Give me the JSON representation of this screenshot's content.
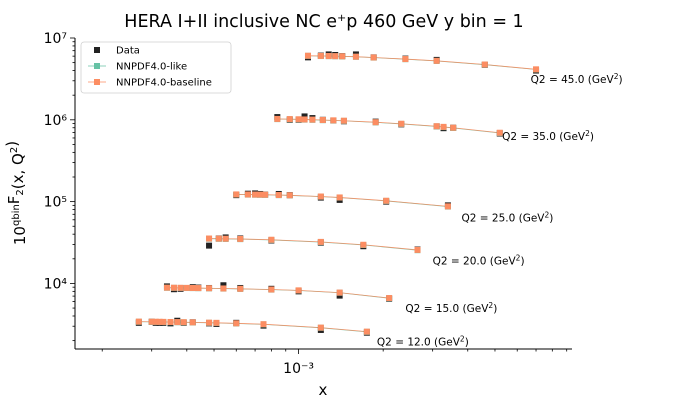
{
  "chart_data": {
    "type": "scatter",
    "title": "HERA I+II inclusive NC e⁺p 460 GeV y bin = 1",
    "xlabel": "x",
    "ylabel": "10^{qbin}F_2(x, Q^2)",
    "xscale": "log",
    "yscale": "log",
    "xlim": [
      0.00016,
      0.0094
    ],
    "ylim": [
      1580,
      10000000
    ],
    "x_ticks": [
      {
        "value": 0.001,
        "label": "10⁻³"
      }
    ],
    "y_ticks": [
      {
        "value": 10000,
        "label": "10⁴"
      },
      {
        "value": 100000,
        "label": "10⁵"
      },
      {
        "value": 1000000,
        "label": "10⁶"
      },
      {
        "value": 10000000,
        "label": "10⁷"
      }
    ],
    "grid": false,
    "legend": {
      "position": "top-left",
      "entries": [
        "Data",
        "NNPDF4.0-like",
        "NNPDF4.0-baseline"
      ]
    },
    "series_styles": [
      {
        "name": "Data",
        "color": "#222222",
        "marker": "square"
      },
      {
        "name": "NNPDF4.0-like",
        "color": "#66c2a5",
        "marker": "square"
      },
      {
        "name": "NNPDF4.0-baseline",
        "color": "#fc8d62",
        "marker": "square"
      }
    ],
    "annotations": [
      {
        "label": "Q2 = 45.0 (GeV",
        "sup": "2",
        "close": ")",
        "x": 0.0067,
        "y": 2800000
      },
      {
        "label": "Q2 = 35.0 (GeV",
        "sup": "2",
        "close": ")",
        "x": 0.0053,
        "y": 570000
      },
      {
        "label": "Q2 = 25.0 (GeV",
        "sup": "2",
        "close": ")",
        "x": 0.0038,
        "y": 57000
      },
      {
        "label": "Q2 = 20.0 (GeV",
        "sup": "2",
        "close": ")",
        "x": 0.003,
        "y": 17000
      },
      {
        "label": "Q2 = 15.0 (GeV",
        "sup": "2",
        "close": ")",
        "x": 0.0024,
        "y": 4500
      },
      {
        "label": "Q2 = 12.0 (GeV",
        "sup": "2",
        "close": ")",
        "x": 0.0019,
        "y": 1750
      }
    ],
    "bins": [
      {
        "q2": 45.0,
        "x": [
          0.00108,
          0.0012,
          0.00128,
          0.00135,
          0.00143,
          0.0016,
          0.00185,
          0.0024,
          0.0031,
          0.0046,
          0.007
        ],
        "data": [
          5800000,
          6100000,
          6300000,
          6200000,
          6000000,
          6300000,
          5800000,
          5600000,
          5400000,
          4700000,
          4000000
        ],
        "nnpdf_like": [
          6050000,
          6020000,
          6000000,
          5980000,
          5960000,
          5890000,
          5760000,
          5510000,
          5240000,
          4720000,
          4120000
        ],
        "nnpdf_baseline": [
          6070000,
          6040000,
          6020000,
          6000000,
          5980000,
          5910000,
          5780000,
          5530000,
          5260000,
          4740000,
          4140000
        ]
      },
      {
        "q2": 35.0,
        "x": [
          0.00084,
          0.00093,
          0.001,
          0.00105,
          0.00112,
          0.00122,
          0.00133,
          0.00145,
          0.00188,
          0.00232,
          0.0031,
          0.00328,
          0.00355,
          0.0052
        ],
        "data": [
          1080000,
          1000000,
          1000000,
          1100000,
          1050000,
          1000000,
          980000,
          960000,
          950000,
          880000,
          830000,
          790000,
          800000,
          680000
        ],
        "nnpdf_like": [
          1020000,
          1015000,
          1010000,
          1005000,
          1000000,
          990000,
          980000,
          970000,
          930000,
          890000,
          830000,
          815000,
          795000,
          690000
        ],
        "nnpdf_baseline": [
          1025000,
          1020000,
          1015000,
          1010000,
          1005000,
          995000,
          985000,
          975000,
          935000,
          895000,
          835000,
          820000,
          800000,
          695000
        ]
      },
      {
        "q2": 25.0,
        "x": [
          0.0006,
          0.00066,
          0.0007,
          0.00073,
          0.00076,
          0.00085,
          0.00093,
          0.0012,
          0.0014,
          0.00205,
          0.0034
        ],
        "data": [
          120000,
          125000,
          126000,
          124000,
          122000,
          124000,
          120000,
          112000,
          105000,
          100000,
          90000
        ],
        "nnpdf_like": [
          122000,
          121800,
          121500,
          121200,
          121000,
          120000,
          119000,
          115000,
          112000,
          102000,
          87000
        ],
        "nnpdf_baseline": [
          122500,
          122300,
          122000,
          121700,
          121500,
          120500,
          119500,
          115500,
          112500,
          102500,
          87500
        ]
      },
      {
        "q2": 20.0,
        "x": [
          0.00048,
          0.00052,
          0.00055,
          0.00062,
          0.0008,
          0.0012,
          0.0017,
          0.00265
        ],
        "data": [
          29000,
          35500,
          36500,
          35500,
          33500,
          31500,
          28500,
          26000
        ],
        "nnpdf_like": [
          35200,
          35100,
          35000,
          34800,
          34000,
          32000,
          29500,
          25500
        ],
        "nnpdf_baseline": [
          35400,
          35300,
          35200,
          35000,
          34200,
          32200,
          29700,
          25700
        ]
      },
      {
        "q2": 15.0,
        "x": [
          0.00034,
          0.00036,
          0.00038,
          0.0004,
          0.00042,
          0.00044,
          0.00048,
          0.00054,
          0.00062,
          0.0008,
          0.001,
          0.0014,
          0.0021
        ],
        "data": [
          9200,
          8500,
          8600,
          8800,
          9000,
          8900,
          8800,
          9500,
          8800,
          8600,
          8000,
          7100,
          6500
        ],
        "nnpdf_like": [
          8850,
          8830,
          8810,
          8790,
          8770,
          8750,
          8710,
          8650,
          8570,
          8400,
          8200,
          7700,
          6600
        ],
        "nnpdf_baseline": [
          8880,
          8860,
          8840,
          8820,
          8800,
          8780,
          8740,
          8680,
          8600,
          8430,
          8230,
          7730,
          6630
        ]
      },
      {
        "q2": 12.0,
        "x": [
          0.00027,
          0.0003,
          0.00031,
          0.00032,
          0.00033,
          0.00035,
          0.00037,
          0.00039,
          0.00042,
          0.00048,
          0.00051,
          0.0006,
          0.00075,
          0.0012,
          0.00175
        ],
        "data": [
          3300,
          3400,
          3300,
          3300,
          3300,
          3250,
          3500,
          3300,
          3350,
          3250,
          3200,
          3300,
          3050,
          2700,
          2500
        ],
        "nnpdf_like": [
          3400,
          3390,
          3385,
          3380,
          3375,
          3365,
          3355,
          3345,
          3330,
          3300,
          3285,
          3240,
          3160,
          2870,
          2560
        ],
        "nnpdf_baseline": [
          3415,
          3405,
          3400,
          3395,
          3390,
          3380,
          3370,
          3360,
          3345,
          3315,
          3300,
          3255,
          3175,
          2885,
          2575
        ]
      }
    ]
  }
}
